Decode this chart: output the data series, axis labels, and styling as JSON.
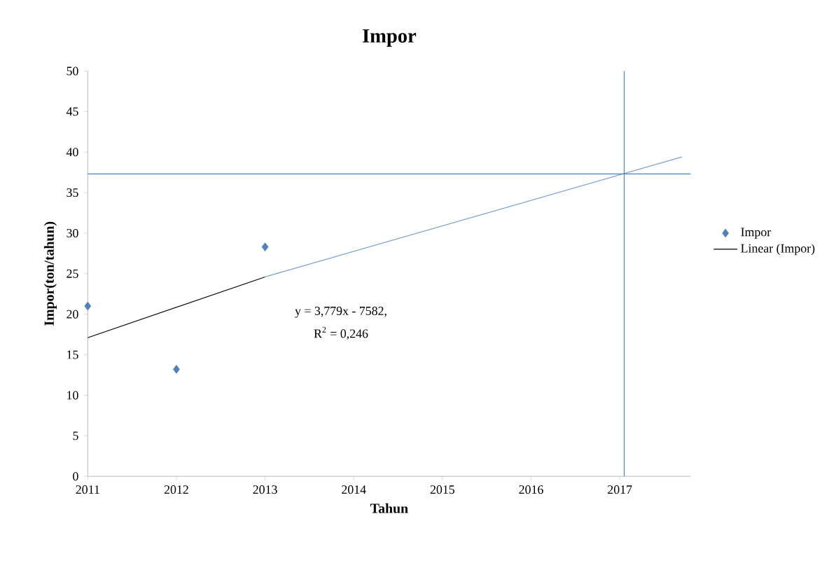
{
  "chart_data": {
    "type": "scatter",
    "title": "Impor",
    "xlabel": "Tahun",
    "ylabel": "Impor(ton/tahun)",
    "xlim": [
      2011,
      2017.8
    ],
    "ylim": [
      0,
      50
    ],
    "xticks": [
      2011,
      2012,
      2013,
      2014,
      2015,
      2016,
      2017
    ],
    "yticks": [
      0,
      5,
      10,
      15,
      20,
      25,
      30,
      35,
      40,
      45,
      50
    ],
    "legend": "right",
    "marker": "diamond",
    "grid": false,
    "series": [
      {
        "name": "Impor",
        "color": "#4f81bd",
        "x": [
          2011,
          2012,
          2013
        ],
        "values": [
          21,
          13.2,
          28.3
        ]
      },
      {
        "name": "Linear (Impor)",
        "type": "line",
        "marker": "none",
        "color": "#000000",
        "x": [
          2011,
          2013
        ],
        "values": [
          17.1,
          24.6
        ]
      },
      {
        "type": "line",
        "marker": "none",
        "color": "#7aa0d4",
        "x": [
          2013,
          2017.7
        ],
        "values": [
          24.6,
          39.4
        ]
      }
    ],
    "ref_lines": [
      {
        "axis": "y",
        "value": 37.3,
        "color": "#4f81bd"
      },
      {
        "axis": "x",
        "value": 2017.05,
        "color": "#4f81bd"
      }
    ],
    "annotations": [
      "y = 3,779x - 7582,",
      "R$^{2}$ = 0,246"
    ]
  }
}
